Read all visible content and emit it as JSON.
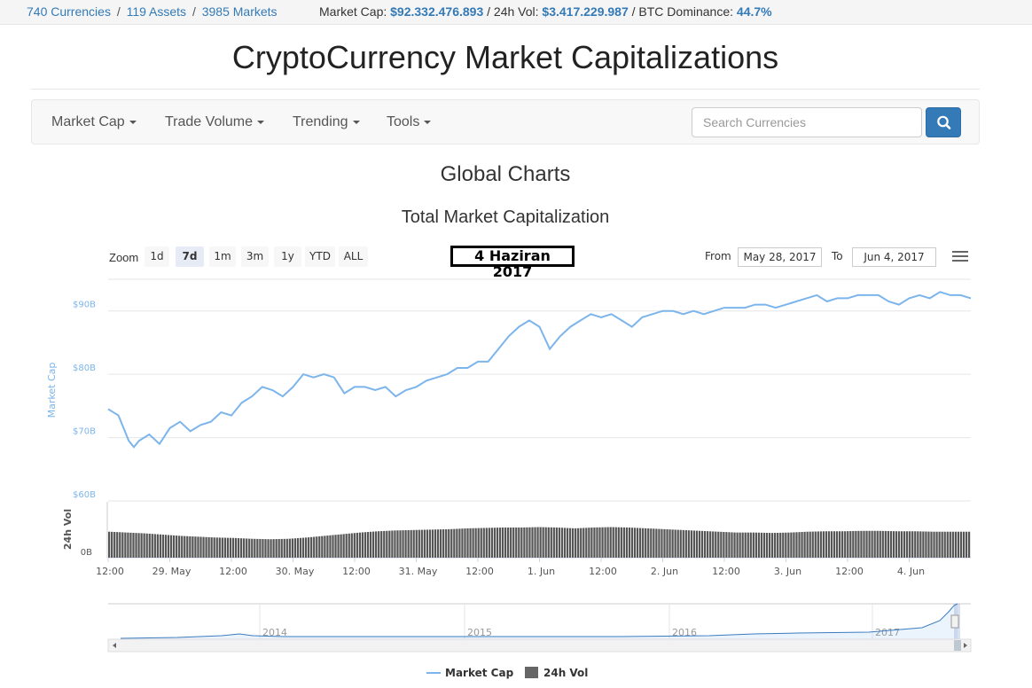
{
  "topbar": {
    "currencies": "740 Currencies",
    "assets": "119 Assets",
    "markets": "3985 Markets",
    "sep": "/",
    "market_cap_label": "Market Cap:",
    "market_cap_value": "$92.332.476.893",
    "vol_label": "/ 24h Vol:",
    "vol_value": "$3.417.229.987",
    "btc_label": "/ BTC Dominance:",
    "btc_value": "44.7%"
  },
  "site_title": "CryptoCurrency Market Capitalizations",
  "nav": {
    "items": [
      {
        "label": "Market Cap"
      },
      {
        "label": "Trade Volume"
      },
      {
        "label": "Trending"
      },
      {
        "label": "Tools"
      }
    ],
    "search_placeholder": "Search Currencies"
  },
  "page": {
    "heading": "Global Charts",
    "chart_title": "Total Market Capitalization"
  },
  "toolbar": {
    "zoom_label": "Zoom",
    "zoom_buttons": [
      "1d",
      "7d",
      "1m",
      "3m",
      "1y",
      "YTD",
      "ALL"
    ],
    "active_zoom": "7d",
    "date_badge": "4 Haziran 2017",
    "from_label": "From",
    "from_value": "May 28, 2017",
    "to_label": "To",
    "to_value": "Jun 4, 2017"
  },
  "chart_data": {
    "type": "line",
    "y_axis_label": "Market Cap",
    "y_ticks": [
      "$60B",
      "$70B",
      "$80B",
      "$90B"
    ],
    "ylim": [
      60,
      95
    ],
    "vol_axis_label": "24h Vol",
    "vol_tick": "0B",
    "x_ticks": [
      "12:00",
      "29. May",
      "12:00",
      "30. May",
      "12:00",
      "31. May",
      "12:00",
      "1. Jun",
      "12:00",
      "2. Jun",
      "12:00",
      "3. Jun",
      "12:00",
      "4. Jun"
    ],
    "x_range_hours": [
      0,
      168
    ],
    "market_cap_series": {
      "name": "Market Cap",
      "color": "#7cb5ec",
      "x_hours": [
        0,
        2,
        4,
        5,
        6,
        8,
        10,
        12,
        14,
        16,
        18,
        20,
        22,
        24,
        26,
        28,
        30,
        32,
        34,
        36,
        38,
        40,
        42,
        44,
        46,
        48,
        50,
        52,
        54,
        56,
        58,
        60,
        62,
        64,
        66,
        68,
        70,
        72,
        74,
        76,
        78,
        80,
        82,
        84,
        86,
        88,
        90,
        92,
        94,
        96,
        98,
        100,
        102,
        104,
        106,
        108,
        110,
        112,
        114,
        116,
        118,
        120,
        122,
        124,
        126,
        128,
        130,
        132,
        134,
        136,
        138,
        140,
        142,
        144,
        146,
        148,
        150,
        152,
        154,
        156,
        158,
        160,
        162,
        164,
        166,
        168
      ],
      "values_billion": [
        74.5,
        73.5,
        69.5,
        68.5,
        69.5,
        70.5,
        69.0,
        71.5,
        72.5,
        71.0,
        72.0,
        72.5,
        74.0,
        73.5,
        75.5,
        76.5,
        78.0,
        77.5,
        76.5,
        78.0,
        80.0,
        79.5,
        80.0,
        79.5,
        77.0,
        78.0,
        78.0,
        77.5,
        78.0,
        76.5,
        77.5,
        78.0,
        79.0,
        79.5,
        80.0,
        81.0,
        81.0,
        82.0,
        82.0,
        84.0,
        86.0,
        87.5,
        88.5,
        87.5,
        84.0,
        86.0,
        87.5,
        88.5,
        89.5,
        89.0,
        89.5,
        88.5,
        87.5,
        89.0,
        89.5,
        90.0,
        90.0,
        89.5,
        90.0,
        89.5,
        90.0,
        90.5,
        90.5,
        90.5,
        91.0,
        91.0,
        90.5,
        91.0,
        91.5,
        92.0,
        92.5,
        91.5,
        92.0,
        92.0,
        92.5,
        92.5,
        92.5,
        91.5,
        91.0,
        92.0,
        92.5,
        92.0,
        93.0,
        92.5,
        92.5,
        92.0
      ]
    },
    "volume_series": {
      "name": "24h Vol",
      "color": "#555555",
      "values_relative": [
        0.62,
        0.6,
        0.58,
        0.55,
        0.52,
        0.5,
        0.48,
        0.47,
        0.45,
        0.44,
        0.45,
        0.48,
        0.52,
        0.56,
        0.6,
        0.63,
        0.65,
        0.66,
        0.67,
        0.68,
        0.7,
        0.71,
        0.72,
        0.72,
        0.73,
        0.72,
        0.7,
        0.72,
        0.73,
        0.72,
        0.7,
        0.68,
        0.66,
        0.64,
        0.62,
        0.6,
        0.6,
        0.59,
        0.6,
        0.62,
        0.63,
        0.63,
        0.64,
        0.64,
        0.63,
        0.63,
        0.62,
        0.62,
        0.62
      ]
    },
    "navigator": {
      "x_ticks": [
        "2014",
        "2015",
        "2016",
        "2017"
      ]
    },
    "legend": [
      {
        "name": "Market Cap",
        "symbol": "line",
        "color": "#7cb5ec"
      },
      {
        "name": "24h Vol",
        "symbol": "square",
        "color": "#666666"
      }
    ],
    "legend_position": "bottom-center"
  }
}
